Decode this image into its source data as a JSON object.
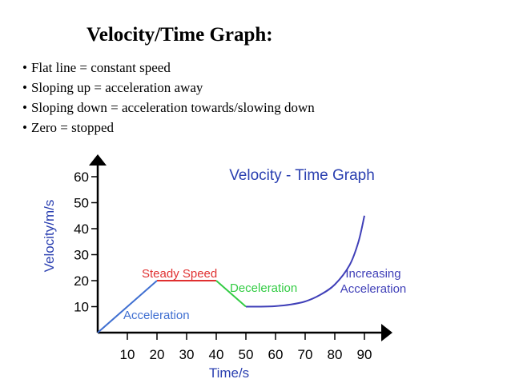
{
  "slide": {
    "title": "Velocity/Time Graph:",
    "bullets": [
      "Flat line = constant speed",
      "Sloping up = acceleration away",
      "Sloping down = acceleration towards/slowing down",
      "Zero = stopped"
    ]
  },
  "chart_data": {
    "type": "line",
    "title": "Velocity - Time Graph",
    "xlabel": "Time/s",
    "ylabel": "Velocity/m/s",
    "x_ticks": [
      10,
      20,
      30,
      40,
      50,
      60,
      70,
      80,
      90
    ],
    "y_ticks": [
      10,
      20,
      30,
      40,
      50,
      60
    ],
    "xlim": [
      0,
      100
    ],
    "ylim": [
      0,
      65
    ],
    "grid": false,
    "legend": "none",
    "segments": [
      {
        "label": "Acceleration",
        "color": "#3f6fd1",
        "points": [
          [
            0,
            0
          ],
          [
            20,
            20
          ]
        ]
      },
      {
        "label": "Steady Speed",
        "color": "#e03030",
        "points": [
          [
            20,
            20
          ],
          [
            40,
            20
          ]
        ]
      },
      {
        "label": "Deceleration",
        "color": "#33cc44",
        "points": [
          [
            40,
            20
          ],
          [
            50,
            10
          ]
        ]
      },
      {
        "label": "Increasing Acceleration",
        "color": "#3f3fb8",
        "points": [
          [
            50,
            10
          ],
          [
            55,
            10
          ],
          [
            60,
            10.2
          ],
          [
            65,
            10.8
          ],
          [
            70,
            12
          ],
          [
            75,
            14.5
          ],
          [
            80,
            18.5
          ],
          [
            85,
            26
          ],
          [
            88,
            35
          ],
          [
            90,
            45
          ]
        ]
      }
    ],
    "colors": {
      "axis": "#000000",
      "tick_text": "#000000",
      "title": "#2a3fb0",
      "axis_label": "#2a3fb0"
    }
  }
}
